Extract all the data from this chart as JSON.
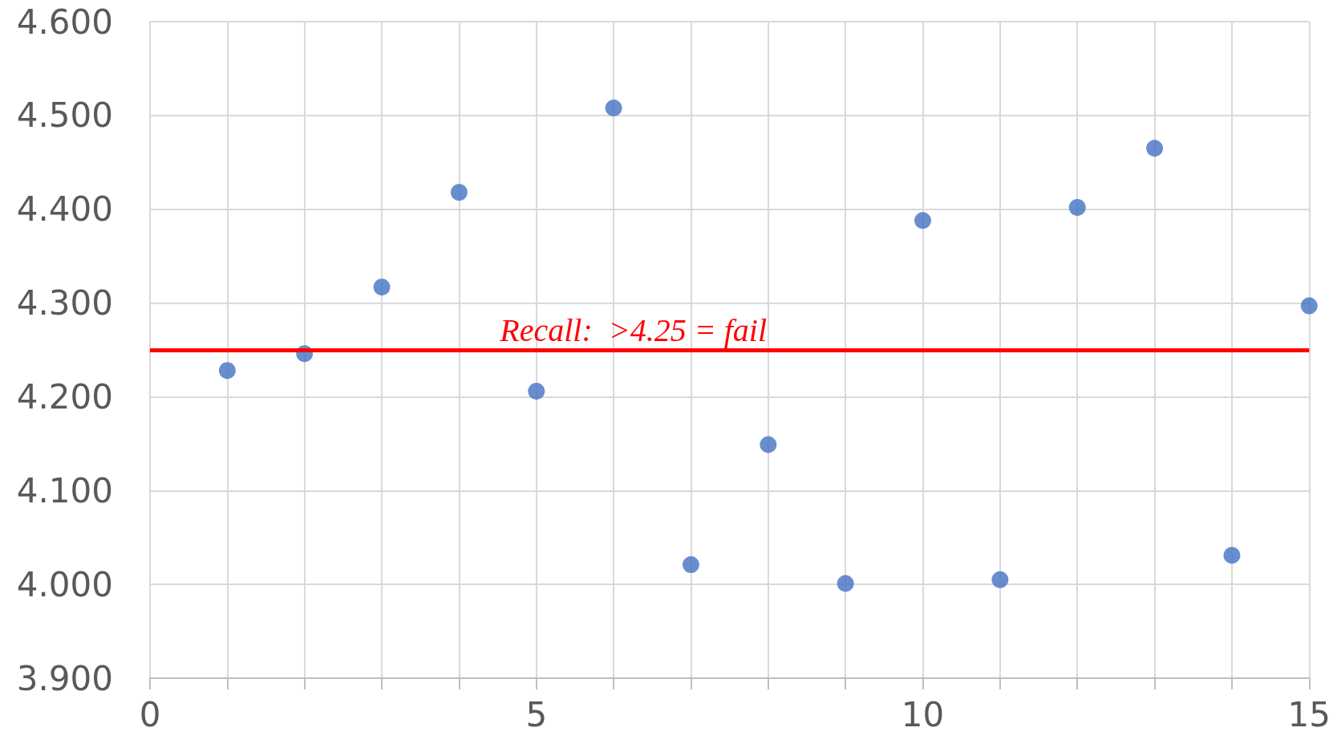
{
  "chart_data": {
    "type": "scatter",
    "x": [
      1,
      2,
      3,
      4,
      5,
      6,
      7,
      8,
      9,
      10,
      11,
      12,
      13,
      14,
      15
    ],
    "series": [
      {
        "color": "#4472c4",
        "values": [
          4.228,
          4.246,
          4.317,
          4.418,
          4.206,
          4.508,
          4.021,
          4.149,
          4.001,
          4.388,
          4.005,
          4.402,
          4.465,
          4.031,
          4.297
        ]
      }
    ],
    "marker": "circle",
    "xlim": [
      0,
      15
    ],
    "xticks": [
      0,
      {
        "value": 1,
        "label": null
      },
      {
        "value": 2,
        "label": null
      },
      {
        "value": 3,
        "label": null
      },
      {
        "value": 4,
        "label": null
      },
      5,
      {
        "value": 6,
        "label": null
      },
      {
        "value": 7,
        "label": null
      },
      {
        "value": 8,
        "label": null
      },
      {
        "value": 9,
        "label": null
      },
      10,
      {
        "value": 11,
        "label": null
      },
      {
        "value": 12,
        "label": null
      },
      {
        "value": 13,
        "label": null
      },
      {
        "value": 14,
        "label": null
      },
      15
    ],
    "ylim": [
      3.9,
      4.6
    ],
    "yticks": [
      {
        "value": 3.9,
        "label": "3.900"
      },
      {
        "value": 4.0,
        "label": "4.000"
      },
      {
        "value": 4.1,
        "label": "4.100"
      },
      {
        "value": 4.2,
        "label": "4.200"
      },
      {
        "value": 4.3,
        "label": "4.300"
      },
      {
        "value": 4.4,
        "label": "4.400"
      },
      {
        "value": 4.5,
        "label": "4.500"
      },
      {
        "value": 4.6,
        "label": "4.600"
      }
    ],
    "grid": true,
    "ref_lines": [
      {
        "axis": "y",
        "value": 4.25,
        "label": "Recall:  >4.25 = fail",
        "color": "#ff0000"
      }
    ]
  }
}
